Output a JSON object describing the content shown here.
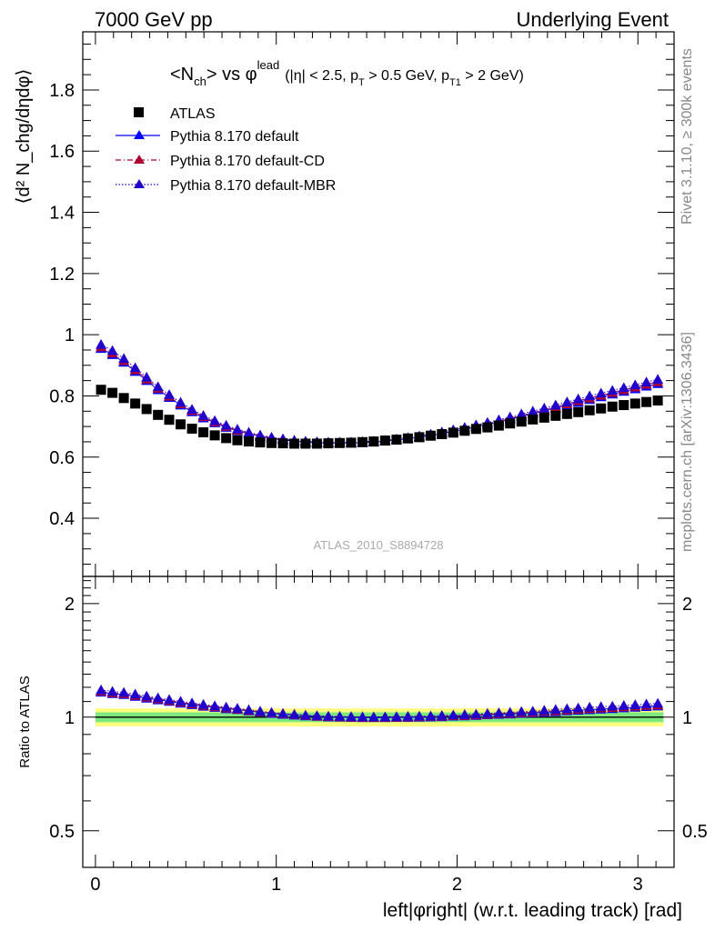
{
  "header": {
    "left": "7000 GeV pp",
    "right": "Underlying Event"
  },
  "side_labels": {
    "rivet": "Rivet 3.1.10, ≥ 300k events",
    "mcplots": "mcplots.cern.ch [arXiv:1306.3436]"
  },
  "analysis_id": "ATLAS_2010_S8894728",
  "title": {
    "main": "<N",
    "main_sub": "ch",
    "main_tail": "> vs φ",
    "main_sup": "lead",
    "cuts": "(|η| < 2.5, p",
    "cuts_sub1": "T",
    "cuts_mid": " > 0.5 GeV, p",
    "cuts_sub2": "T1",
    "cuts_tail": " > 2 GeV)"
  },
  "colors": {
    "atlas": "#000000",
    "default": "#0000ff",
    "cd": "#b00030",
    "mbr": "#2200cc",
    "band_inner": "#7de87d",
    "band_outer": "#ffff80"
  },
  "chart_data": [
    {
      "type": "scatter",
      "panel": "main",
      "ylabel": "⟨d² N_chg/dηdφ⟩",
      "xlim": [
        -0.07,
        3.2
      ],
      "ylim": [
        0.21,
        1.99
      ],
      "yticks": [
        "0.4",
        "0.6",
        "0.8",
        "1",
        "1.2",
        "1.4",
        "1.6",
        "1.8"
      ],
      "x": [
        0.031,
        0.094,
        0.157,
        0.22,
        0.283,
        0.346,
        0.408,
        0.471,
        0.534,
        0.597,
        0.66,
        0.723,
        0.785,
        0.848,
        0.911,
        0.974,
        1.037,
        1.1,
        1.162,
        1.225,
        1.288,
        1.351,
        1.414,
        1.477,
        1.539,
        1.602,
        1.665,
        1.728,
        1.791,
        1.854,
        1.916,
        1.979,
        2.042,
        2.105,
        2.168,
        2.231,
        2.293,
        2.356,
        2.419,
        2.482,
        2.545,
        2.608,
        2.67,
        2.733,
        2.796,
        2.859,
        2.922,
        2.985,
        3.047,
        3.11
      ],
      "series": [
        {
          "name": "ATLAS",
          "marker": "square",
          "values": [
            0.82,
            0.81,
            0.793,
            0.775,
            0.757,
            0.738,
            0.722,
            0.707,
            0.693,
            0.681,
            0.671,
            0.662,
            0.655,
            0.651,
            0.648,
            0.646,
            0.645,
            0.644,
            0.644,
            0.644,
            0.645,
            0.646,
            0.647,
            0.649,
            0.651,
            0.654,
            0.657,
            0.661,
            0.665,
            0.67,
            0.675,
            0.68,
            0.686,
            0.692,
            0.697,
            0.703,
            0.71,
            0.716,
            0.723,
            0.729,
            0.735,
            0.741,
            0.747,
            0.753,
            0.759,
            0.765,
            0.77,
            0.775,
            0.78,
            0.785
          ]
        },
        {
          "name": "Pythia 8.170 default",
          "marker": "triangle",
          "values": [
            0.955,
            0.935,
            0.91,
            0.88,
            0.85,
            0.82,
            0.795,
            0.77,
            0.748,
            0.728,
            0.712,
            0.697,
            0.686,
            0.676,
            0.668,
            0.661,
            0.656,
            0.652,
            0.649,
            0.647,
            0.646,
            0.646,
            0.646,
            0.647,
            0.649,
            0.652,
            0.656,
            0.66,
            0.665,
            0.671,
            0.677,
            0.684,
            0.691,
            0.699,
            0.707,
            0.715,
            0.724,
            0.733,
            0.742,
            0.751,
            0.76,
            0.77,
            0.779,
            0.788,
            0.797,
            0.806,
            0.815,
            0.823,
            0.832,
            0.84
          ]
        },
        {
          "name": "Pythia 8.170 default-CD",
          "marker": "triangle",
          "values": [
            0.96,
            0.94,
            0.915,
            0.885,
            0.855,
            0.825,
            0.799,
            0.774,
            0.752,
            0.732,
            0.715,
            0.7,
            0.688,
            0.678,
            0.67,
            0.663,
            0.658,
            0.654,
            0.65,
            0.648,
            0.647,
            0.647,
            0.647,
            0.648,
            0.65,
            0.653,
            0.657,
            0.662,
            0.667,
            0.673,
            0.679,
            0.686,
            0.693,
            0.701,
            0.709,
            0.718,
            0.727,
            0.736,
            0.745,
            0.755,
            0.764,
            0.774,
            0.784,
            0.793,
            0.802,
            0.811,
            0.82,
            0.829,
            0.838,
            0.846
          ]
        },
        {
          "name": "Pythia 8.170 default-MBR",
          "marker": "triangle",
          "values": [
            0.968,
            0.948,
            0.922,
            0.892,
            0.861,
            0.83,
            0.804,
            0.779,
            0.756,
            0.736,
            0.719,
            0.704,
            0.691,
            0.681,
            0.672,
            0.665,
            0.66,
            0.655,
            0.652,
            0.65,
            0.649,
            0.649,
            0.649,
            0.65,
            0.652,
            0.655,
            0.659,
            0.664,
            0.669,
            0.675,
            0.682,
            0.689,
            0.697,
            0.705,
            0.713,
            0.722,
            0.731,
            0.741,
            0.75,
            0.76,
            0.77,
            0.78,
            0.79,
            0.8,
            0.809,
            0.818,
            0.827,
            0.836,
            0.845,
            0.854
          ]
        }
      ]
    },
    {
      "type": "scatter",
      "panel": "ratio",
      "ylabel": "Ratio to ATLAS",
      "xlabel": "left|φright| (w.r.t. leading track) [rad]",
      "xlim": [
        -0.07,
        3.2
      ],
      "ylim": [
        0.4,
        2.36
      ],
      "log_y": true,
      "yticks": [
        "0.5",
        "1",
        "2"
      ],
      "xticks": [
        "0",
        "1",
        "2",
        "3"
      ],
      "bands": {
        "inner": 0.03,
        "outer": 0.055
      },
      "reference": 1.0
    }
  ]
}
